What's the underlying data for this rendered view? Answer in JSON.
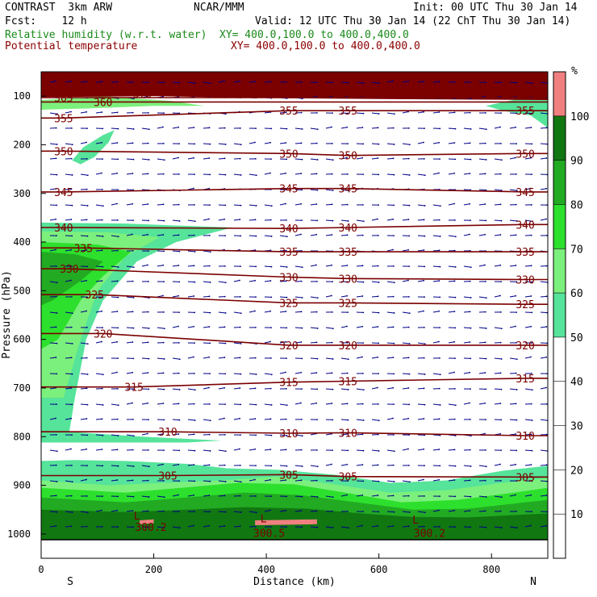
{
  "header": {
    "model": "CONTRAST  3km ARW",
    "org": "NCAR/MMM",
    "init": "Init: 00 UTC Thu 30 Jan 14",
    "fcst": "Fcst:    12 h",
    "valid": "Valid: 12 UTC Thu 30 Jan 14 (22 ChT Thu 30 Jan 14)",
    "field1": "Relative humidity (w.r.t. water)",
    "field1_xy": "XY= 400.0,100.0 to 400.0,400.0",
    "field2": "Potential temperature",
    "field2_xy": "XY= 400.0,100.0 to 400.0,400.0"
  },
  "chart_data": {
    "type": "heatmap",
    "xlabel": "Distance (km)",
    "ylabel": "Pressure (hPa)",
    "xlim": [
      0,
      900
    ],
    "ylim": [
      1050,
      50
    ],
    "x_ticks": [
      0,
      200,
      400,
      600,
      800
    ],
    "y_ticks": [
      100,
      200,
      300,
      400,
      500,
      600,
      700,
      800,
      900,
      1000
    ],
    "end_labels": {
      "left": "S",
      "right": "N"
    },
    "colorbar": {
      "unit": "%",
      "ticks": [
        10,
        20,
        30,
        40,
        50,
        60,
        70,
        80,
        90,
        100
      ],
      "levels": [
        {
          "from": 50,
          "to": 60,
          "color": "#56e39a"
        },
        {
          "from": 60,
          "to": 70,
          "color": "#7cf07c"
        },
        {
          "from": 70,
          "to": 80,
          "color": "#2de02d"
        },
        {
          "from": 80,
          "to": 90,
          "color": "#22aa22"
        },
        {
          "from": 90,
          "to": 100,
          "color": "#117711"
        },
        {
          "from": 100,
          "to": 110,
          "color": "#f08080"
        }
      ]
    },
    "theta_contours": [
      {
        "value": 305,
        "labels": [
          {
            "x": 225,
            "p": 880
          },
          {
            "x": 440,
            "p": 878
          },
          {
            "x": 545,
            "p": 882
          },
          {
            "x": 860,
            "p": 883
          }
        ]
      },
      {
        "value": 310,
        "labels": [
          {
            "x": 225,
            "p": 790
          },
          {
            "x": 440,
            "p": 793
          },
          {
            "x": 545,
            "p": 792
          },
          {
            "x": 860,
            "p": 798
          }
        ]
      },
      {
        "value": 315,
        "labels": [
          {
            "x": 165,
            "p": 698
          },
          {
            "x": 440,
            "p": 688
          },
          {
            "x": 545,
            "p": 686
          },
          {
            "x": 860,
            "p": 680
          }
        ]
      },
      {
        "value": 320,
        "labels": [
          {
            "x": 110,
            "p": 588
          },
          {
            "x": 440,
            "p": 612
          },
          {
            "x": 545,
            "p": 612
          },
          {
            "x": 860,
            "p": 612
          }
        ]
      },
      {
        "value": 325,
        "labels": [
          {
            "x": 95,
            "p": 508
          },
          {
            "x": 440,
            "p": 525
          },
          {
            "x": 545,
            "p": 525
          },
          {
            "x": 860,
            "p": 528
          }
        ]
      },
      {
        "value": 330,
        "labels": [
          {
            "x": 50,
            "p": 455
          },
          {
            "x": 440,
            "p": 472
          },
          {
            "x": 545,
            "p": 475
          },
          {
            "x": 860,
            "p": 477
          }
        ]
      },
      {
        "value": 335,
        "labels": [
          {
            "x": 75,
            "p": 412
          },
          {
            "x": 440,
            "p": 420
          },
          {
            "x": 545,
            "p": 420
          },
          {
            "x": 860,
            "p": 420
          }
        ]
      },
      {
        "value": 340,
        "labels": [
          {
            "x": 40,
            "p": 370
          },
          {
            "x": 440,
            "p": 372
          },
          {
            "x": 545,
            "p": 370
          },
          {
            "x": 860,
            "p": 364
          }
        ]
      },
      {
        "value": 345,
        "labels": [
          {
            "x": 40,
            "p": 297
          },
          {
            "x": 440,
            "p": 290
          },
          {
            "x": 545,
            "p": 290
          },
          {
            "x": 860,
            "p": 297
          }
        ]
      },
      {
        "value": 350,
        "labels": [
          {
            "x": 40,
            "p": 213
          },
          {
            "x": 440,
            "p": 218
          },
          {
            "x": 545,
            "p": 222
          },
          {
            "x": 860,
            "p": 218
          }
        ]
      },
      {
        "value": 355,
        "labels": [
          {
            "x": 40,
            "p": 145
          },
          {
            "x": 440,
            "p": 130
          },
          {
            "x": 545,
            "p": 130
          },
          {
            "x": 860,
            "p": 130
          }
        ]
      },
      {
        "value": 360,
        "labels": [
          {
            "x": 110,
            "p": 112
          }
        ]
      },
      {
        "value": 365,
        "labels": [
          {
            "x": 40,
            "p": 103
          }
        ]
      },
      {
        "value": 370,
        "labels": [
          {
            "x": 180,
            "p": 95
          }
        ]
      }
    ],
    "extra_labels": [
      {
        "text": "300.2",
        "x": 195,
        "p": 985
      },
      {
        "text": "300.5",
        "x": 405,
        "p": 998
      },
      {
        "text": "300.2",
        "x": 690,
        "p": 998
      }
    ],
    "marker_labels": [
      {
        "text": "L",
        "x": 170,
        "p": 962
      },
      {
        "text": "L",
        "x": 395,
        "p": 968
      },
      {
        "text": "L",
        "x": 665,
        "p": 970
      }
    ]
  }
}
